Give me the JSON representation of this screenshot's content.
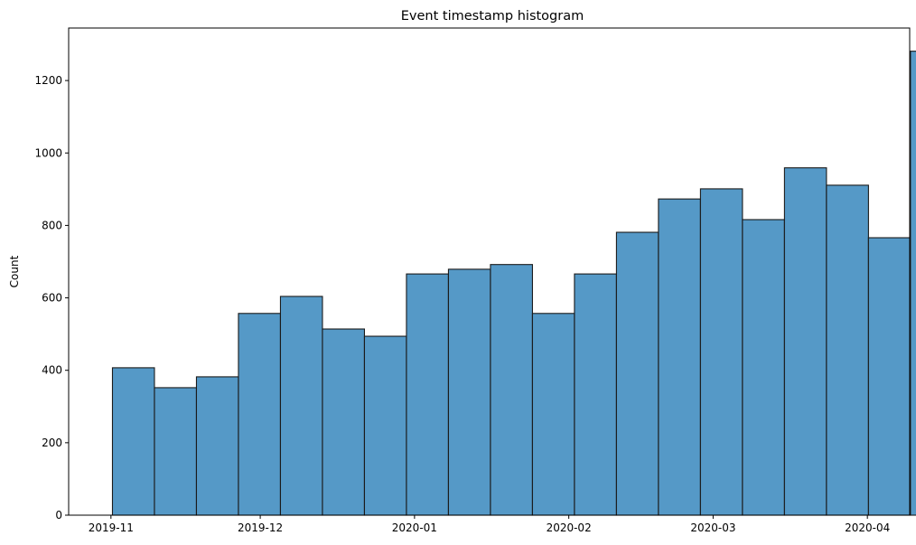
{
  "chart_data": {
    "type": "bar",
    "title": "Event timestamp histogram",
    "xlabel": "",
    "ylabel": "Count",
    "ylim": [
      0,
      1345
    ],
    "yticks": [
      0,
      200,
      400,
      600,
      800,
      1000,
      1200
    ],
    "xlim_days": [
      -8.5,
      160.5
    ],
    "xticks": [
      {
        "day": 0,
        "label": "2019-11"
      },
      {
        "day": 30,
        "label": "2019-12"
      },
      {
        "day": 61,
        "label": "2020-01"
      },
      {
        "day": 92,
        "label": "2020-02"
      },
      {
        "day": 121,
        "label": "2020-03"
      },
      {
        "day": 152,
        "label": "2020-04"
      }
    ],
    "bin_start_day": 0.3,
    "bin_width_days": 8.44,
    "values": [
      407,
      352,
      382,
      557,
      604,
      514,
      494,
      666,
      679,
      692,
      557,
      666,
      781,
      873,
      901,
      816,
      959,
      911,
      766,
      1281
    ],
    "bar_color": "#5599c7",
    "edge_color": "#1a1a1a",
    "grid": false,
    "legend": false
  }
}
